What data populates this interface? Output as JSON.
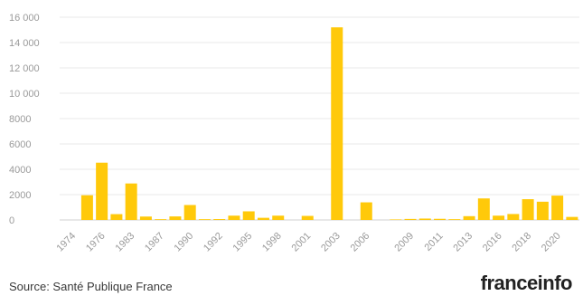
{
  "chart_data": {
    "type": "bar",
    "color": "#FFC90A",
    "ylim": [
      0,
      16000
    ],
    "yticks": [
      0,
      2000,
      4000,
      6000,
      8000,
      10000,
      12000,
      14000,
      16000
    ],
    "ytick_labels": [
      "0",
      "2000",
      "4000",
      "6000",
      "8000",
      "10 000",
      "12 000",
      "14 000",
      "16 000"
    ],
    "grid": true,
    "x_tick_labels": [
      "1974",
      "1976",
      "1983",
      "1987",
      "1990",
      "1992",
      "1995",
      "1998",
      "2001",
      "2003",
      "2006",
      "2009",
      "2011",
      "2013",
      "2016",
      "2018",
      "2020"
    ],
    "bars": [
      {
        "year": "1974",
        "value": 0
      },
      {
        "year": "1975",
        "value": 1950
      },
      {
        "year": "1976",
        "value": 4520
      },
      {
        "year": "1977",
        "value": 460
      },
      {
        "year": "1983",
        "value": 2880
      },
      {
        "year": "1984",
        "value": 270
      },
      {
        "year": "1987",
        "value": 60
      },
      {
        "year": "1988",
        "value": 280
      },
      {
        "year": "1990",
        "value": 1180
      },
      {
        "year": "1991",
        "value": 60
      },
      {
        "year": "1992",
        "value": 70
      },
      {
        "year": "1994",
        "value": 340
      },
      {
        "year": "1995",
        "value": 680
      },
      {
        "year": "1997",
        "value": 170
      },
      {
        "year": "1998",
        "value": 340
      },
      {
        "year": "2000",
        "value": 0
      },
      {
        "year": "2001",
        "value": 320
      },
      {
        "year": "2002",
        "value": 0
      },
      {
        "year": "2003",
        "value": 15200
      },
      {
        "year": "2004",
        "value": 0
      },
      {
        "year": "2006",
        "value": 1390
      },
      {
        "year": "2007",
        "value": 0
      },
      {
        "year": "2008",
        "value": 40
      },
      {
        "year": "2009",
        "value": 80
      },
      {
        "year": "2010",
        "value": 110
      },
      {
        "year": "2011",
        "value": 90
      },
      {
        "year": "2012",
        "value": 60
      },
      {
        "year": "2013",
        "value": 300
      },
      {
        "year": "2015",
        "value": 1700
      },
      {
        "year": "2016",
        "value": 340
      },
      {
        "year": "2017",
        "value": 470
      },
      {
        "year": "2018",
        "value": 1640
      },
      {
        "year": "2019",
        "value": 1440
      },
      {
        "year": "2020",
        "value": 1920
      },
      {
        "year": "2022",
        "value": 240
      }
    ]
  },
  "footer": {
    "source": "Source: Santé Publique France",
    "logo": "franceinfo"
  }
}
